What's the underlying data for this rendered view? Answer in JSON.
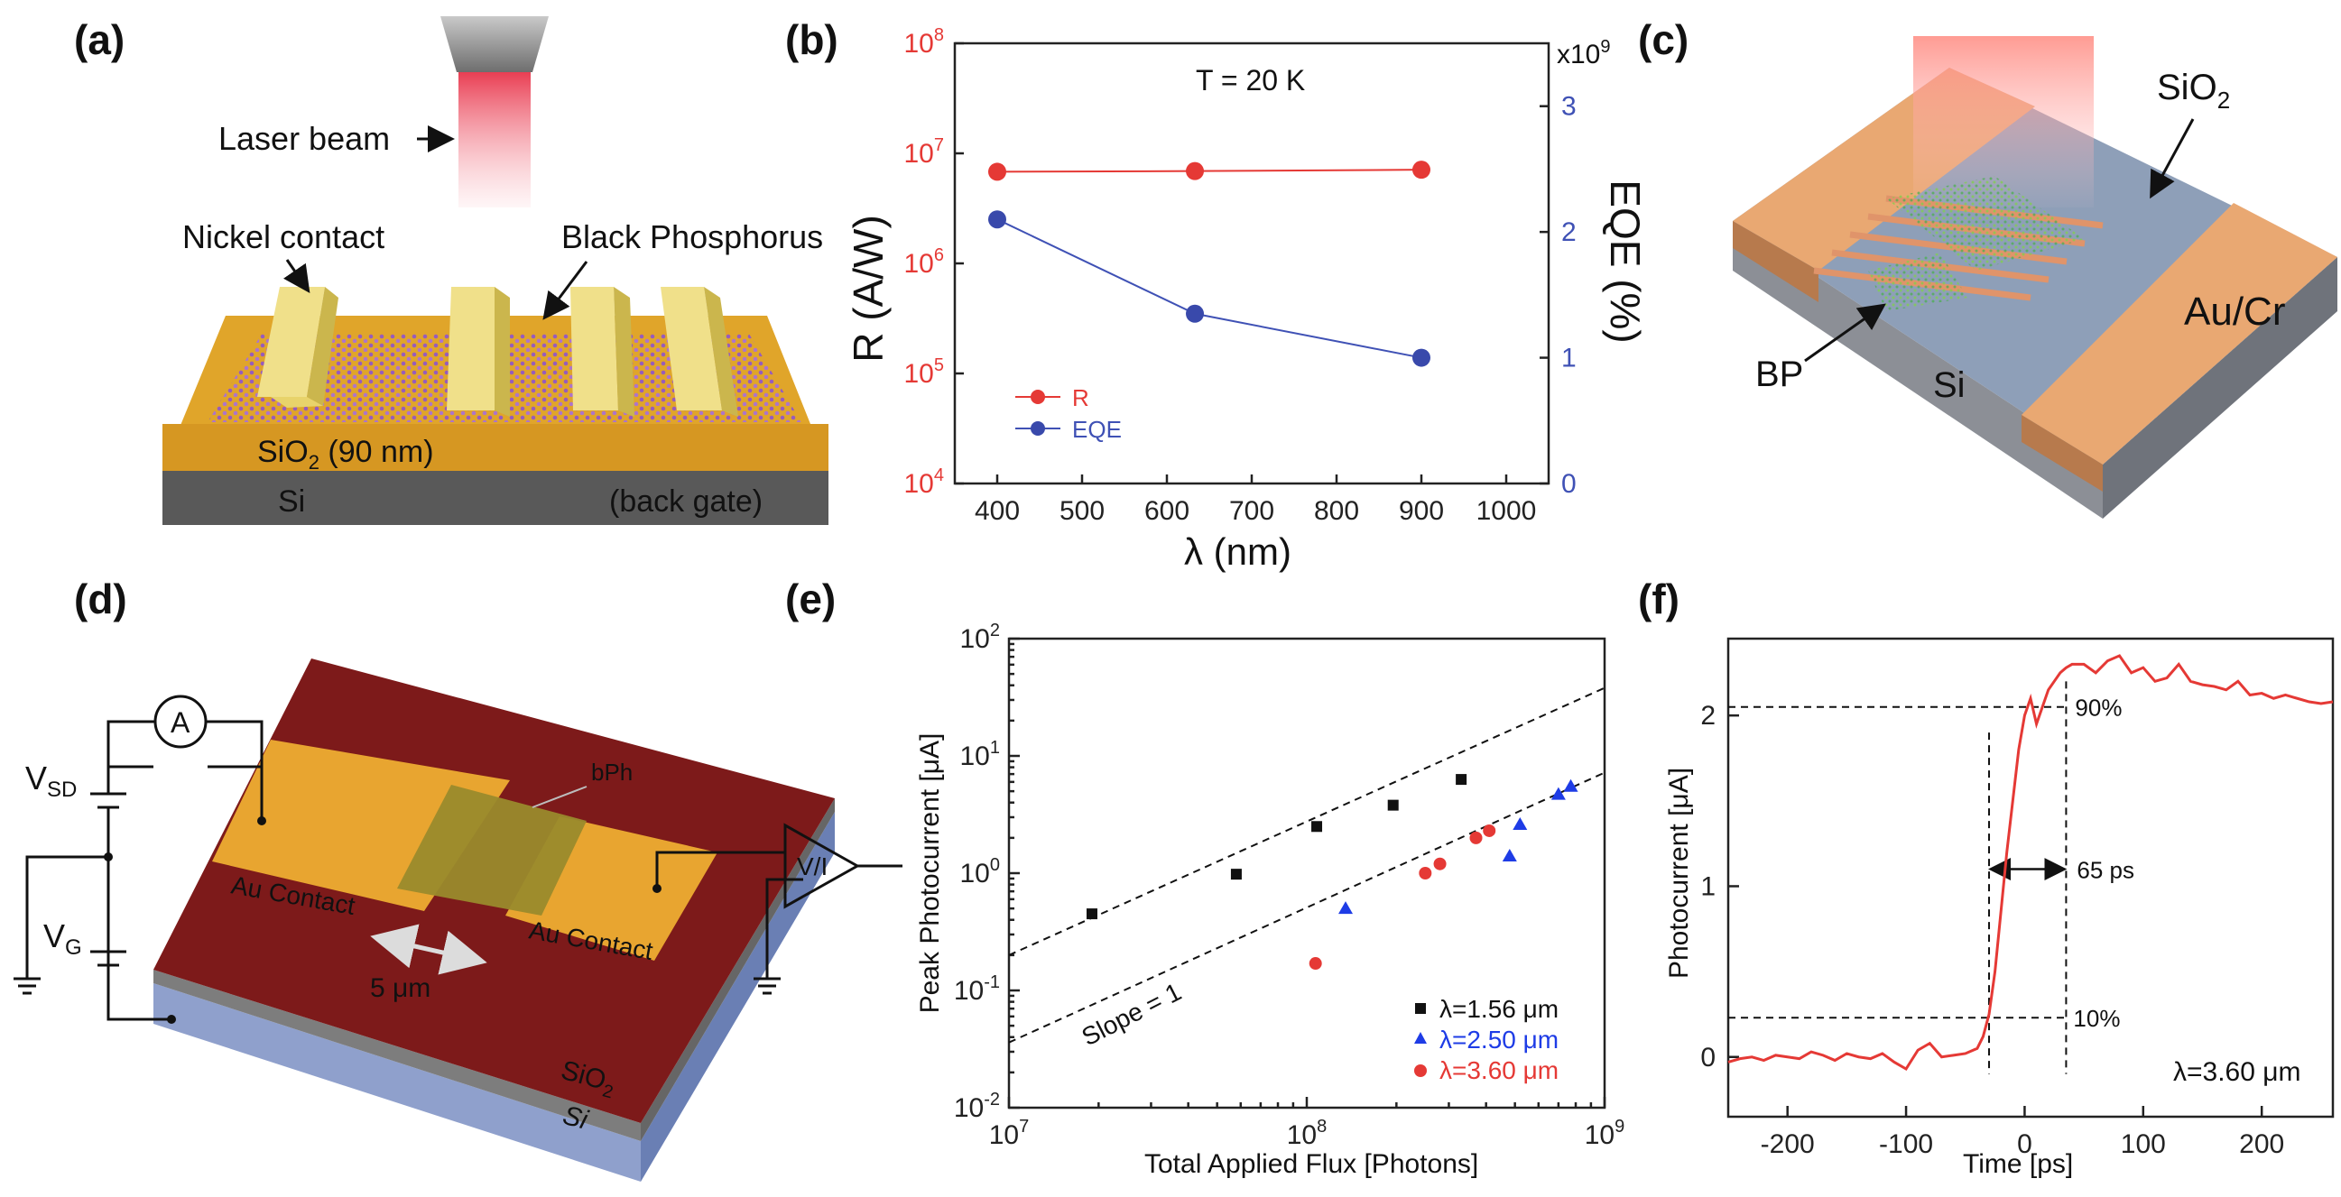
{
  "colors": {
    "red": "#e53935",
    "blue": "#3949ab",
    "gold": "#f2c230",
    "black": "#111111"
  },
  "panels": {
    "a": {
      "label": "(a)",
      "laser": "Laser beam",
      "nickel": "Nickel contact",
      "bp": "Black Phosphorus",
      "sio2_prefix": "SiO",
      "sio2_sub": "2",
      "sio2_suffix": " (90 nm)",
      "si": "Si",
      "gate": "(back gate)"
    },
    "b": {
      "label": "(b)"
    },
    "c": {
      "label": "(c)",
      "sio2_prefix": "SiO",
      "sio2_sub": "2",
      "aucr": "Au/Cr",
      "bp": "BP",
      "si": "Si"
    },
    "d": {
      "label": "(d)",
      "ammeter": "A",
      "vsd_main": "V",
      "vsd_sub": "SD",
      "vg_main": "V",
      "vg_sub": "G",
      "bph": "bPh",
      "au1": "Au Contact",
      "au2": "Au Contact",
      "dist": "5 μm",
      "vi": "V/I",
      "sio2_prefix": "SiO",
      "sio2_sub": "2",
      "si": "Si"
    },
    "e": {
      "label": "(e)"
    },
    "f": {
      "label": "(f)"
    }
  },
  "chart_data": [
    {
      "panel": "b",
      "type": "line",
      "annotation": "T = 20 K",
      "xlabel": "λ (nm)",
      "ylabel_left": "R (A/W)",
      "ylabel_right": "EQE (%)",
      "right_multiplier": "x10",
      "right_multiplier_exp": "9",
      "xlim": [
        350,
        1050
      ],
      "xticks": [
        400,
        500,
        600,
        700,
        800,
        900,
        1000
      ],
      "ylim_left_log": [
        4,
        8
      ],
      "yticks_left": [
        {
          "base": "10",
          "exp": "4"
        },
        {
          "base": "10",
          "exp": "5"
        },
        {
          "base": "10",
          "exp": "6"
        },
        {
          "base": "10",
          "exp": "7"
        },
        {
          "base": "10",
          "exp": "8"
        }
      ],
      "ylim_right": [
        0,
        3.5
      ],
      "yticks_right": [
        0,
        1,
        2,
        3
      ],
      "legend_position": "bottom-left",
      "series": [
        {
          "name": "R",
          "axis": "left",
          "x": [
            400,
            633,
            900
          ],
          "y": [
            6800000.0,
            6900000.0,
            7100000.0
          ]
        },
        {
          "name": "EQE",
          "axis": "right",
          "x": [
            400,
            633,
            900
          ],
          "y": [
            2.1,
            1.35,
            1.0
          ]
        }
      ]
    },
    {
      "panel": "e",
      "type": "scatter",
      "xlabel": "Total Applied Flux [Photons]",
      "ylabel": "Peak Photocurrent [μA]",
      "xlim_log": [
        7,
        9
      ],
      "ylim_log": [
        -2,
        2
      ],
      "xticks": [
        {
          "base": "10",
          "exp": "7"
        },
        {
          "base": "10",
          "exp": "8"
        },
        {
          "base": "10",
          "exp": "9"
        }
      ],
      "yticks": [
        {
          "base": "10",
          "exp": "-2"
        },
        {
          "base": "10",
          "exp": "-1"
        },
        {
          "base": "10",
          "exp": "0"
        },
        {
          "base": "10",
          "exp": "1"
        },
        {
          "base": "10",
          "exp": "2"
        }
      ],
      "fit_label": "Slope = 1",
      "legend_position": "bottom-right",
      "series": [
        {
          "name": "λ=1.56 μm",
          "x": [
            19000000.0,
            58000000.0,
            108000000.0,
            195000000.0,
            330000000.0
          ],
          "y": [
            0.45,
            0.98,
            2.5,
            3.8,
            6.3
          ]
        },
        {
          "name": "λ=2.50 μm",
          "x": [
            135000000.0,
            480000000.0,
            520000000.0,
            700000000.0,
            770000000.0
          ],
          "y": [
            0.5,
            1.4,
            2.6,
            4.7,
            5.5
          ]
        },
        {
          "name": "λ=3.60 μm",
          "x": [
            107000000.0,
            250000000.0,
            280000000.0,
            370000000.0,
            410000000.0
          ],
          "y": [
            0.17,
            1.0,
            1.2,
            2.0,
            2.3
          ]
        }
      ],
      "fits": [
        {
          "x": [
            10000000.0,
            1000000000.0
          ],
          "y": [
            0.2,
            38
          ]
        },
        {
          "x": [
            10000000.0,
            1000000000.0
          ],
          "y": [
            0.036,
            7.2
          ]
        }
      ]
    },
    {
      "panel": "f",
      "type": "line",
      "xlabel": "Time [ps]",
      "ylabel": "Photocurrent [μA]",
      "xlim": [
        -250,
        260
      ],
      "ylim": [
        -0.35,
        2.45
      ],
      "xticks": [
        -200,
        -100,
        0,
        100,
        200
      ],
      "yticks": [
        0,
        1,
        2
      ],
      "annotation_90": "90%",
      "annotation_10": "10%",
      "annotation_rise": "65 ps",
      "legend": "λ=3.60 μm",
      "series": [
        {
          "name": "λ=3.60 μm",
          "x": [
            -250,
            -240,
            -230,
            -220,
            -210,
            -200,
            -190,
            -180,
            -170,
            -160,
            -150,
            -140,
            -130,
            -120,
            -110,
            -100,
            -90,
            -80,
            -70,
            -60,
            -50,
            -40,
            -35,
            -30,
            -25,
            -20,
            -15,
            -10,
            -5,
            0,
            5,
            10,
            15,
            20,
            25,
            30,
            35,
            40,
            50,
            60,
            70,
            80,
            90,
            100,
            110,
            120,
            130,
            140,
            150,
            160,
            170,
            180,
            190,
            200,
            210,
            220,
            230,
            240,
            250,
            260
          ],
          "y": [
            -0.03,
            -0.01,
            0.0,
            -0.02,
            0.01,
            0.0,
            -0.01,
            0.03,
            0.01,
            -0.02,
            0.02,
            0.0,
            -0.01,
            0.02,
            -0.03,
            -0.07,
            0.04,
            0.08,
            0.0,
            0.01,
            0.02,
            0.05,
            0.12,
            0.25,
            0.5,
            0.85,
            1.2,
            1.5,
            1.8,
            2.0,
            2.1,
            1.95,
            2.05,
            2.15,
            2.2,
            2.25,
            2.28,
            2.3,
            2.3,
            2.25,
            2.32,
            2.35,
            2.25,
            2.28,
            2.2,
            2.22,
            2.3,
            2.2,
            2.18,
            2.17,
            2.15,
            2.2,
            2.12,
            2.13,
            2.1,
            2.12,
            2.1,
            2.08,
            2.07,
            2.08
          ]
        }
      ]
    }
  ]
}
